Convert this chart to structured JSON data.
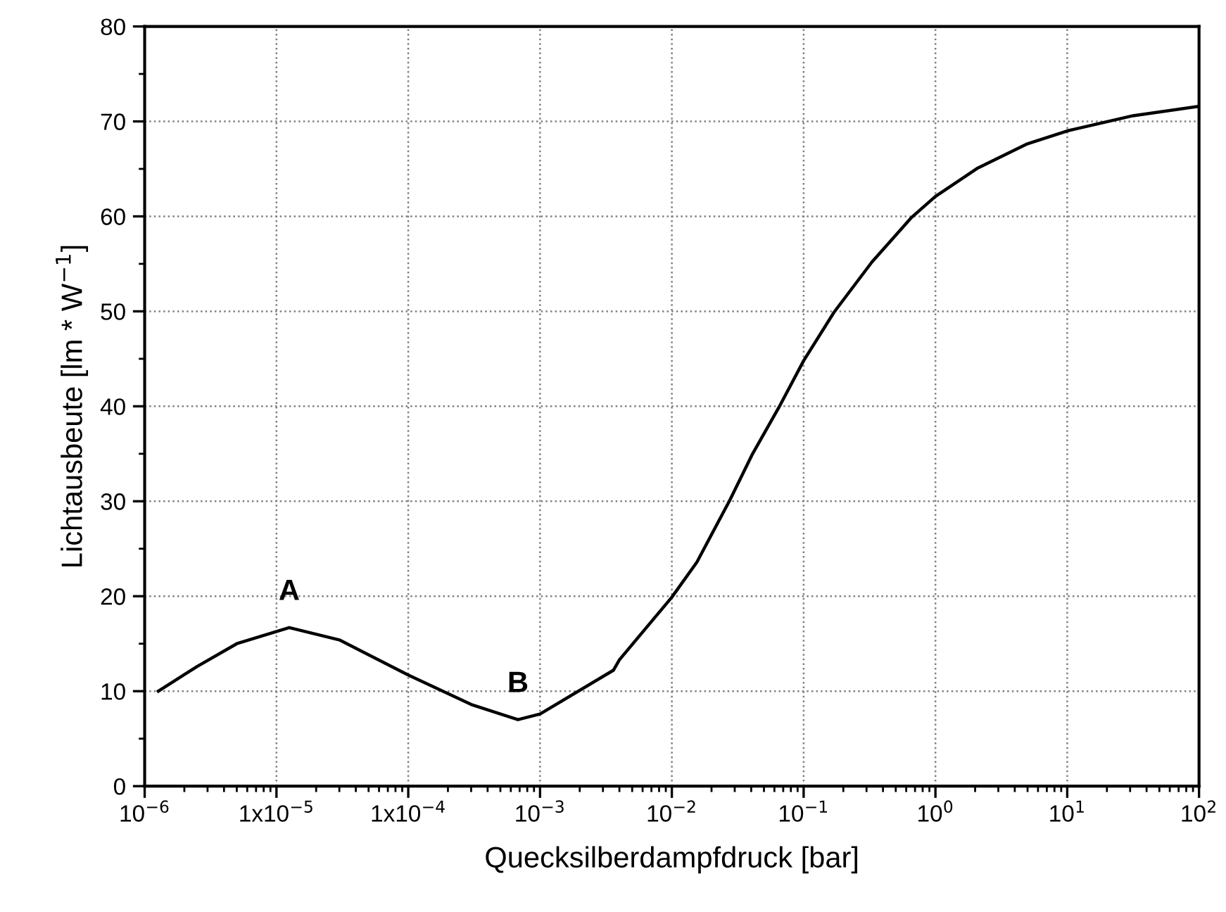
{
  "chart_data": {
    "type": "line",
    "xlabel": "Quecksilberdampfdruck [bar]",
    "ylabel": "Lichtausbeute [lm * W$^{−1}$]",
    "log": "x",
    "grid": true,
    "marker": "none",
    "line_style": "solid",
    "xlim": [
      1e-06,
      100
    ],
    "ylim": [
      0,
      80
    ],
    "xticks": [
      {
        "value": 1e-06,
        "label": "10$^{−6}$"
      },
      {
        "value": 1e-05,
        "label": "1x10$^{−5}$"
      },
      {
        "value": 0.0001,
        "label": "1x10$^{−4}$"
      },
      {
        "value": 0.001,
        "label": "10$^{−3}$"
      },
      {
        "value": 0.01,
        "label": "10$^{−2}$"
      },
      {
        "value": 0.1,
        "label": "10$^{−1}$"
      },
      {
        "value": 1,
        "label": "10$^{0}$"
      },
      {
        "value": 10,
        "label": "10$^{1}$"
      },
      {
        "value": 100,
        "label": "10$^{2}$"
      }
    ],
    "yticks": [
      0,
      10,
      20,
      30,
      40,
      50,
      60,
      70,
      80
    ],
    "series": [
      {
        "color": "#000000",
        "x": [
          1.27e-06,
          2.5e-06,
          5e-06,
          1.25e-05,
          3e-05,
          0.0001,
          0.0003,
          0.00068,
          0.001,
          0.0036,
          0.004,
          0.01,
          0.0155,
          0.0275,
          0.041,
          0.065,
          0.1,
          0.17,
          0.33,
          0.66,
          1,
          2.1,
          4.9,
          10,
          31.6,
          100
        ],
        "values": [
          10,
          12.6,
          15.0,
          16.7,
          15.4,
          11.7,
          8.6,
          7.0,
          7.6,
          12.2,
          13.3,
          19.9,
          23.6,
          30.1,
          35.0,
          39.9,
          44.8,
          49.9,
          55.2,
          59.9,
          62.1,
          65.1,
          67.6,
          69.0,
          70.6,
          71.6
        ]
      }
    ],
    "annotations": [
      {
        "text": "A",
        "x": 1.25e-05,
        "y": 16.7
      },
      {
        "text": "B",
        "x": 0.00068,
        "y": 7.0
      }
    ]
  }
}
